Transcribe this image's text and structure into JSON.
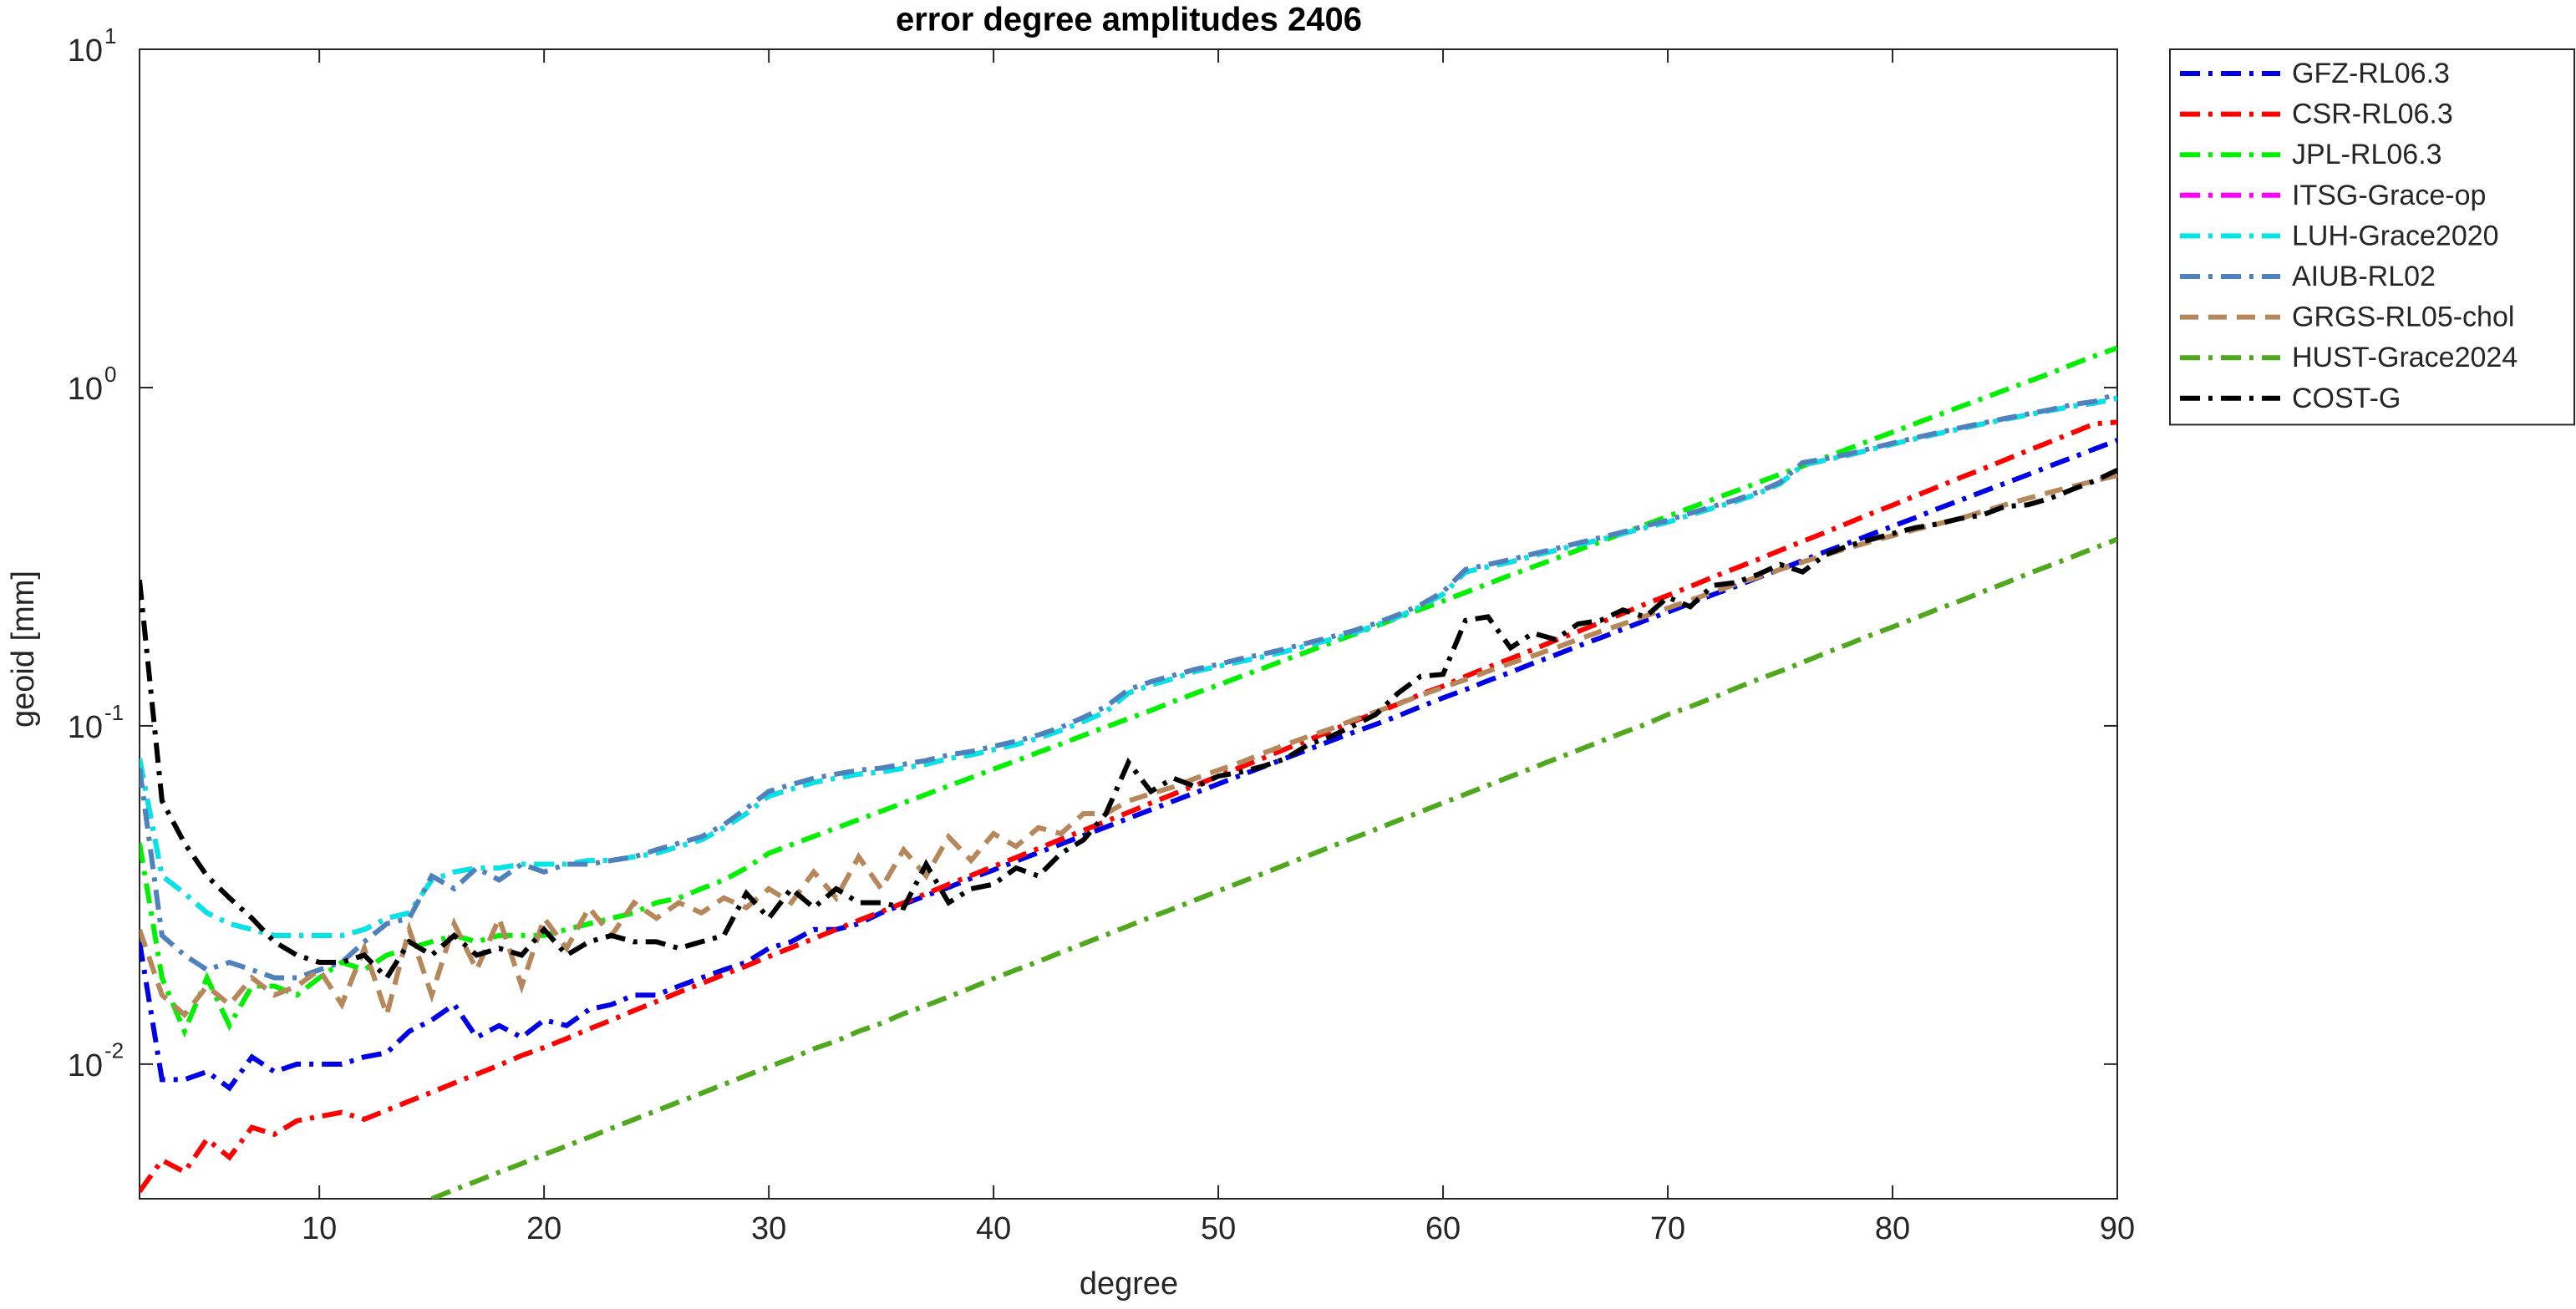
{
  "chart_data": {
    "type": "line",
    "title": "error degree amplitudes 2406",
    "x_label": "degree",
    "y_label": "geoid [mm]",
    "log_y": true,
    "grid": false,
    "legend": "northeastoutside",
    "xlim": [
      2,
      90
    ],
    "ylim": [
      0.004,
      10
    ],
    "xticks": [
      10,
      20,
      30,
      40,
      50,
      60,
      70,
      80,
      90
    ],
    "yticks": [
      {
        "value": 0.01,
        "label": "10",
        "exponent": "-2"
      },
      {
        "value": 0.1,
        "label": "10",
        "exponent": "-1"
      },
      {
        "value": 1,
        "label": "10",
        "exponent": "0"
      },
      {
        "value": 10,
        "label": "10",
        "exponent": "1"
      }
    ],
    "x": [
      2,
      3,
      4,
      5,
      6,
      7,
      8,
      9,
      10,
      11,
      12,
      13,
      14,
      15,
      16,
      17,
      18,
      19,
      20,
      21,
      22,
      23,
      24,
      25,
      26,
      27,
      28,
      29,
      30,
      31,
      32,
      33,
      34,
      35,
      36,
      37,
      38,
      39,
      40,
      41,
      42,
      43,
      44,
      45,
      46,
      47,
      48,
      49,
      50,
      51,
      52,
      53,
      54,
      55,
      56,
      57,
      58,
      59,
      60,
      61,
      62,
      63,
      64,
      65,
      66,
      67,
      68,
      69,
      70,
      71,
      72,
      73,
      74,
      75,
      76,
      77,
      78,
      79,
      80,
      81,
      82,
      83,
      84,
      85,
      86,
      87,
      88,
      89,
      90
    ],
    "series": [
      {
        "name": "GFZ-RL06.3",
        "color": "#0000e6",
        "linestyle": "-.",
        "values": [
          0.023,
          0.009,
          0.009,
          0.0095,
          0.0085,
          0.0105,
          0.0095,
          0.01,
          0.01,
          0.01,
          0.0105,
          0.0108,
          0.0125,
          0.0135,
          0.015,
          0.012,
          0.013,
          0.012,
          0.0135,
          0.013,
          0.0145,
          0.015,
          0.016,
          0.016,
          0.017,
          0.018,
          0.019,
          0.02,
          0.022,
          0.023,
          0.025,
          0.025,
          0.026,
          0.028,
          0.0297,
          0.0315,
          0.0333,
          0.0354,
          0.0375,
          0.0398,
          0.0422,
          0.0447,
          0.0474,
          0.0502,
          0.0533,
          0.0565,
          0.0599,
          0.0635,
          0.0673,
          0.0714,
          0.0757,
          0.0802,
          0.0851,
          0.0902,
          0.0956,
          0.101,
          0.107,
          0.114,
          0.121,
          0.128,
          0.136,
          0.144,
          0.153,
          0.162,
          0.172,
          0.182,
          0.193,
          0.205,
          0.217,
          0.23,
          0.244,
          0.258,
          0.274,
          0.29,
          0.308,
          0.327,
          0.346,
          0.367,
          0.389,
          0.412,
          0.438,
          0.464,
          0.492,
          0.521,
          0.552,
          0.586,
          0.621,
          0.659,
          0.698
        ]
      },
      {
        "name": "CSR-RL06.3",
        "color": "#ff0000",
        "linestyle": "-.",
        "values": [
          0.0042,
          0.0052,
          0.0048,
          0.006,
          0.0053,
          0.0065,
          0.0062,
          0.0068,
          0.007,
          0.0072,
          0.00687,
          0.00731,
          0.00777,
          0.00826,
          0.00879,
          0.00934,
          0.00993,
          0.0106,
          0.0112,
          0.0119,
          0.0127,
          0.0135,
          0.0144,
          0.0153,
          0.0163,
          0.0173,
          0.0184,
          0.0195,
          0.0208,
          0.0221,
          0.0235,
          0.025,
          0.0266,
          0.0282,
          0.03,
          0.0319,
          0.034,
          0.0361,
          0.0384,
          0.0408,
          0.0434,
          0.0462,
          0.0491,
          0.0522,
          0.0555,
          0.0591,
          0.0628,
          0.0668,
          0.071,
          0.0755,
          0.0803,
          0.0855,
          0.0908,
          0.0966,
          0.103,
          0.109,
          0.116,
          0.124,
          0.131,
          0.14,
          0.149,
          0.158,
          0.168,
          0.179,
          0.19,
          0.202,
          0.215,
          0.229,
          0.243,
          0.258,
          0.275,
          0.292,
          0.31,
          0.33,
          0.351,
          0.373,
          0.397,
          0.423,
          0.449,
          0.478,
          0.508,
          0.541,
          0.574,
          0.611,
          0.65,
          0.691,
          0.735,
          0.782,
          0.79
        ]
      },
      {
        "name": "JPL-RL06.3",
        "color": "#00f000",
        "linestyle": "-.",
        "values": [
          0.045,
          0.018,
          0.0125,
          0.018,
          0.013,
          0.017,
          0.017,
          0.016,
          0.018,
          0.02,
          0.019,
          0.021,
          0.022,
          0.023,
          0.024,
          0.023,
          0.024,
          0.024,
          0.024,
          0.025,
          0.026,
          0.027,
          0.028,
          0.03,
          0.031,
          0.033,
          0.035,
          0.038,
          0.042,
          0.0445,
          0.0471,
          0.0499,
          0.0528,
          0.0559,
          0.0592,
          0.0627,
          0.0664,
          0.0703,
          0.0745,
          0.0788,
          0.0835,
          0.0884,
          0.0937,
          0.0992,
          0.105,
          0.111,
          0.118,
          0.125,
          0.132,
          0.14,
          0.148,
          0.157,
          0.166,
          0.176,
          0.186,
          0.197,
          0.209,
          0.221,
          0.234,
          0.248,
          0.263,
          0.279,
          0.295,
          0.312,
          0.331,
          0.35,
          0.371,
          0.393,
          0.416,
          0.441,
          0.467,
          0.494,
          0.523,
          0.554,
          0.586,
          0.621,
          0.658,
          0.697,
          0.738,
          0.782,
          0.828,
          0.877,
          0.928,
          0.983,
          1.04,
          1.1,
          1.17,
          1.24,
          1.31
        ]
      },
      {
        "name": "ITSG-Grace-op",
        "color": "#ff00ff",
        "linestyle": "-.",
        "values": [
          0.08,
          0.036,
          0.032,
          0.028,
          0.026,
          0.025,
          0.024,
          0.024,
          0.024,
          0.024,
          0.025,
          0.027,
          0.028,
          0.035,
          0.037,
          0.038,
          0.038,
          0.039,
          0.039,
          0.039,
          0.04,
          0.04,
          0.041,
          0.042,
          0.044,
          0.046,
          0.05,
          0.055,
          0.062,
          0.065,
          0.068,
          0.07,
          0.072,
          0.073,
          0.075,
          0.077,
          0.08,
          0.082,
          0.085,
          0.088,
          0.092,
          0.097,
          0.103,
          0.11,
          0.125,
          0.132,
          0.138,
          0.145,
          0.15,
          0.155,
          0.16,
          0.166,
          0.173,
          0.18,
          0.188,
          0.198,
          0.21,
          0.225,
          0.245,
          0.285,
          0.295,
          0.305,
          0.318,
          0.33,
          0.343,
          0.355,
          0.37,
          0.385,
          0.4,
          0.42,
          0.44,
          0.46,
          0.485,
          0.52,
          0.59,
          0.61,
          0.63,
          0.655,
          0.68,
          0.705,
          0.73,
          0.755,
          0.78,
          0.805,
          0.83,
          0.855,
          0.88,
          0.9,
          0.93
        ]
      },
      {
        "name": "LUH-Grace2020",
        "color": "#00e6e6",
        "linestyle": "-.",
        "values": [
          0.08,
          0.036,
          0.032,
          0.028,
          0.026,
          0.025,
          0.024,
          0.024,
          0.024,
          0.024,
          0.025,
          0.027,
          0.028,
          0.035,
          0.037,
          0.038,
          0.038,
          0.039,
          0.039,
          0.039,
          0.04,
          0.04,
          0.041,
          0.042,
          0.044,
          0.046,
          0.05,
          0.055,
          0.062,
          0.065,
          0.068,
          0.07,
          0.072,
          0.073,
          0.075,
          0.077,
          0.08,
          0.082,
          0.085,
          0.088,
          0.092,
          0.097,
          0.103,
          0.11,
          0.125,
          0.132,
          0.138,
          0.145,
          0.15,
          0.155,
          0.16,
          0.166,
          0.173,
          0.18,
          0.188,
          0.198,
          0.21,
          0.225,
          0.245,
          0.285,
          0.295,
          0.305,
          0.318,
          0.33,
          0.343,
          0.355,
          0.37,
          0.385,
          0.4,
          0.42,
          0.44,
          0.46,
          0.485,
          0.52,
          0.59,
          0.61,
          0.63,
          0.655,
          0.68,
          0.705,
          0.73,
          0.755,
          0.78,
          0.805,
          0.83,
          0.855,
          0.88,
          0.9,
          0.93
        ]
      },
      {
        "name": "AIUB-RL02",
        "color": "#4f81bd",
        "linestyle": "-.",
        "values": [
          0.075,
          0.024,
          0.021,
          0.019,
          0.02,
          0.019,
          0.018,
          0.018,
          0.019,
          0.02,
          0.023,
          0.026,
          0.027,
          0.036,
          0.033,
          0.038,
          0.035,
          0.039,
          0.037,
          0.039,
          0.039,
          0.04,
          0.041,
          0.043,
          0.045,
          0.047,
          0.051,
          0.057,
          0.064,
          0.067,
          0.07,
          0.072,
          0.074,
          0.075,
          0.077,
          0.079,
          0.082,
          0.084,
          0.087,
          0.09,
          0.094,
          0.099,
          0.106,
          0.114,
          0.128,
          0.135,
          0.141,
          0.147,
          0.152,
          0.158,
          0.163,
          0.169,
          0.176,
          0.183,
          0.191,
          0.201,
          0.213,
          0.228,
          0.249,
          0.29,
          0.3,
          0.31,
          0.322,
          0.334,
          0.347,
          0.36,
          0.374,
          0.39,
          0.405,
          0.425,
          0.445,
          0.465,
          0.49,
          0.525,
          0.6,
          0.615,
          0.635,
          0.66,
          0.685,
          0.71,
          0.735,
          0.76,
          0.785,
          0.81,
          0.835,
          0.86,
          0.89,
          0.91,
          0.96
        ]
      },
      {
        "name": "GRGS-RL05-chol",
        "color": "#b5875a",
        "linestyle": "--",
        "values": [
          0.025,
          0.016,
          0.014,
          0.017,
          0.015,
          0.018,
          0.016,
          0.017,
          0.019,
          0.015,
          0.022,
          0.014,
          0.025,
          0.016,
          0.026,
          0.019,
          0.027,
          0.017,
          0.027,
          0.022,
          0.029,
          0.024,
          0.03,
          0.027,
          0.03,
          0.028,
          0.031,
          0.029,
          0.033,
          0.03,
          0.037,
          0.031,
          0.041,
          0.033,
          0.043,
          0.036,
          0.047,
          0.04,
          0.048,
          0.044,
          0.05,
          0.048,
          0.055,
          0.055,
          0.06,
          0.063,
          0.066,
          0.07,
          0.074,
          0.078,
          0.083,
          0.088,
          0.093,
          0.098,
          0.104,
          0.11,
          0.116,
          0.123,
          0.13,
          0.137,
          0.145,
          0.153,
          0.161,
          0.17,
          0.18,
          0.19,
          0.2,
          0.211,
          0.223,
          0.235,
          0.248,
          0.262,
          0.275,
          0.29,
          0.305,
          0.32,
          0.335,
          0.35,
          0.365,
          0.38,
          0.395,
          0.41,
          0.43,
          0.45,
          0.47,
          0.49,
          0.51,
          0.53,
          0.55
        ]
      },
      {
        "name": "HUST-Grace2024",
        "color": "#4fa81e",
        "linestyle": "-.",
        "values": [
          null,
          null,
          null,
          null,
          null,
          null,
          null,
          null,
          null,
          null,
          null,
          null,
          null,
          0.004,
          0.00425,
          0.00451,
          0.00479,
          0.00508,
          0.0054,
          0.00573,
          0.00608,
          0.00646,
          0.00686,
          0.00728,
          0.00773,
          0.0082,
          0.00871,
          0.00925,
          0.00982,
          0.0104,
          0.0111,
          0.0117,
          0.0125,
          0.0132,
          0.0141,
          0.0149,
          0.0158,
          0.0168,
          0.0179,
          0.019,
          0.0201,
          0.0214,
          0.0227,
          0.0241,
          0.0256,
          0.0272,
          0.0288,
          0.0306,
          0.0325,
          0.0345,
          0.0366,
          0.0389,
          0.0413,
          0.0439,
          0.0466,
          0.0494,
          0.0525,
          0.0557,
          0.0592,
          0.0628,
          0.0667,
          0.0708,
          0.0752,
          0.0798,
          0.0847,
          0.0899,
          0.0955,
          0.101,
          0.108,
          0.114,
          0.121,
          0.129,
          0.137,
          0.145,
          0.154,
          0.164,
          0.174,
          0.185,
          0.196,
          0.208,
          0.221,
          0.234,
          0.249,
          0.264,
          0.281,
          0.298,
          0.316,
          0.336,
          0.356
        ]
      },
      {
        "name": "COST-G",
        "color": "#000000",
        "linestyle": "-.",
        "values": [
          0.27,
          0.06,
          0.045,
          0.036,
          0.031,
          0.027,
          0.023,
          0.021,
          0.02,
          0.02,
          0.021,
          0.018,
          0.023,
          0.021,
          0.024,
          0.021,
          0.022,
          0.021,
          0.025,
          0.021,
          0.023,
          0.024,
          0.023,
          0.023,
          0.022,
          0.023,
          0.024,
          0.032,
          0.027,
          0.033,
          0.029,
          0.033,
          0.03,
          0.03,
          0.029,
          0.039,
          0.03,
          0.033,
          0.034,
          0.038,
          0.036,
          0.042,
          0.046,
          0.055,
          0.078,
          0.064,
          0.07,
          0.066,
          0.071,
          0.073,
          0.076,
          0.08,
          0.088,
          0.093,
          0.1,
          0.108,
          0.125,
          0.14,
          0.142,
          0.205,
          0.21,
          0.17,
          0.188,
          0.18,
          0.2,
          0.205,
          0.22,
          0.21,
          0.24,
          0.225,
          0.26,
          0.265,
          0.28,
          0.3,
          0.285,
          0.32,
          0.34,
          0.355,
          0.37,
          0.385,
          0.395,
          0.41,
          0.42,
          0.445,
          0.45,
          0.47,
          0.5,
          0.53,
          0.57
        ]
      }
    ]
  }
}
